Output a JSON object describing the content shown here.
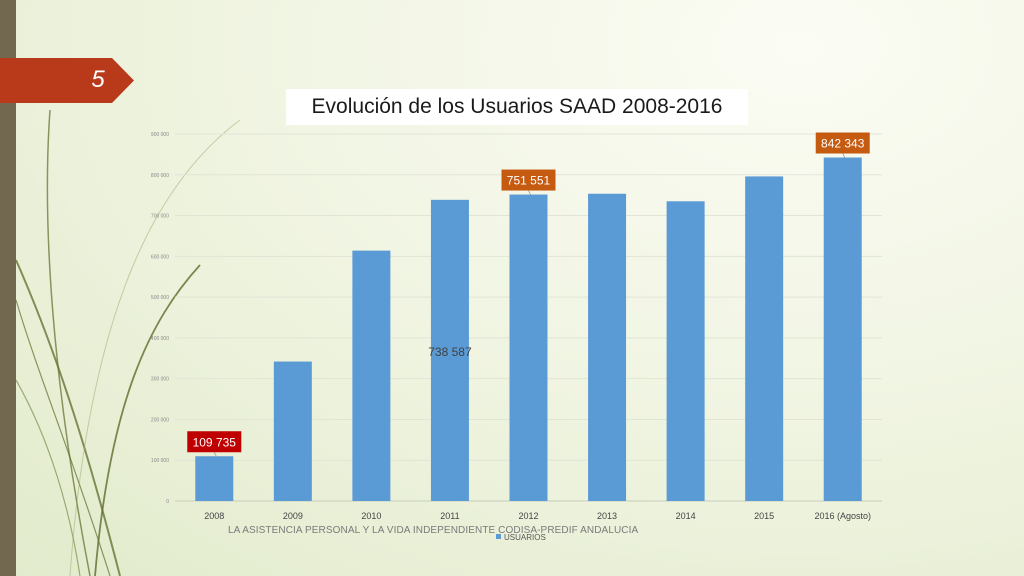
{
  "slide": {
    "number": "5",
    "footer": "LA ASISTENCIA PERSONAL Y LA VIDA INDEPENDIENTE CODISA-PREDIF ANDALUCIA"
  },
  "colors": {
    "bar": "#5b9bd5",
    "accent_tab": "#b9391b",
    "label_red": "#c00000",
    "label_orange": "#c55a11",
    "left_bar": "#72684f",
    "deco_lines": "#5f6b2a"
  },
  "chart_data": {
    "type": "bar",
    "title": "Evolución de los  Usuarios  SAAD 2008-2016",
    "categories": [
      "2008",
      "2009",
      "2010",
      "2011",
      "2012",
      "2013",
      "2014",
      "2015",
      "2016 (Agosto)"
    ],
    "series": [
      {
        "name": "USUARIOS",
        "values": [
          109735,
          342000,
          614000,
          738587,
          751551,
          753500,
          735000,
          796000,
          842343
        ]
      }
    ],
    "ylim": [
      0,
      900000
    ],
    "yticks": [
      {
        "value": 0,
        "label": "0"
      },
      {
        "value": 100000,
        "label": "100 000"
      },
      {
        "value": 200000,
        "label": "200 000"
      },
      {
        "value": 300000,
        "label": "300 000"
      },
      {
        "value": 400000,
        "label": "400 000"
      },
      {
        "value": 500000,
        "label": "500 000"
      },
      {
        "value": 600000,
        "label": "600 000"
      },
      {
        "value": 700000,
        "label": "700 000"
      },
      {
        "value": 800000,
        "label": "800 000"
      },
      {
        "value": 900000,
        "label": "900 000"
      }
    ],
    "grid": true,
    "legend": "bottom",
    "data_labels": [
      {
        "index": 0,
        "text": "109 735",
        "style": "red-box"
      },
      {
        "index": 3,
        "text": "738 587",
        "style": "plain-mid"
      },
      {
        "index": 4,
        "text": "751 551",
        "style": "orange-box"
      },
      {
        "index": 8,
        "text": "842 343",
        "style": "orange-box"
      }
    ]
  }
}
